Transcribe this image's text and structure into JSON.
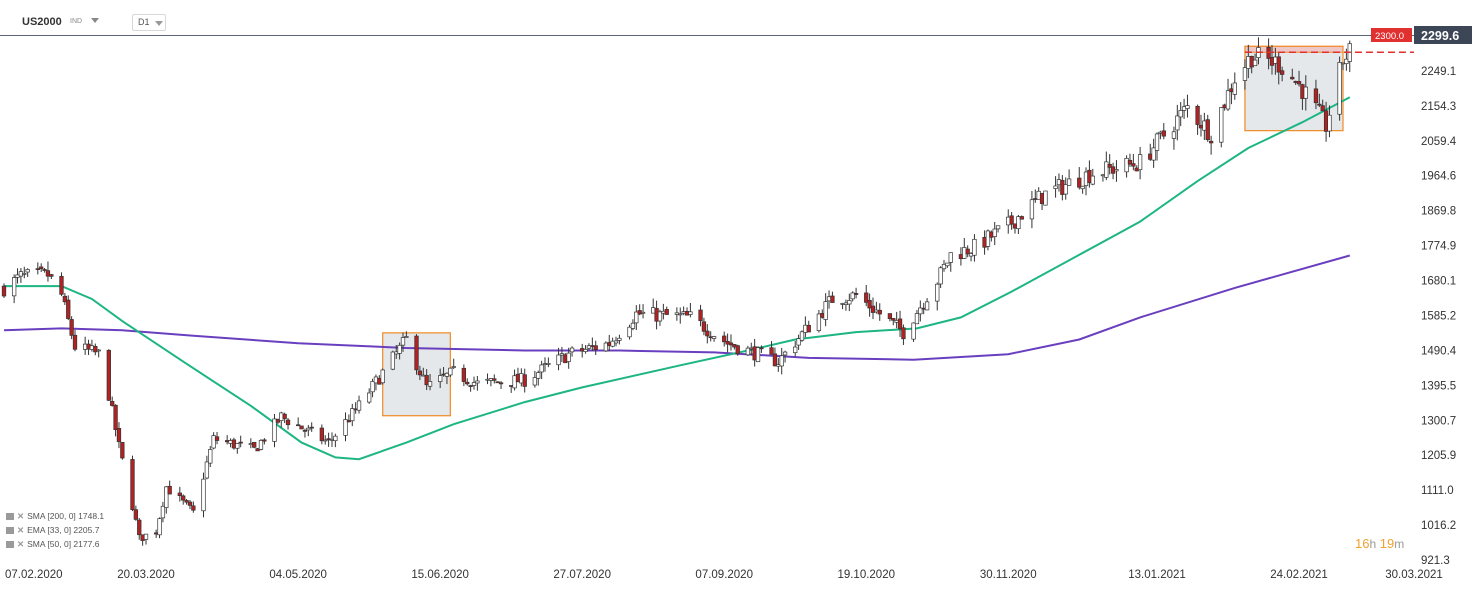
{
  "instrument": {
    "symbol": "US2000",
    "type": "IND",
    "timeframe": "D1"
  },
  "countdown": {
    "hours": "16",
    "h_unit": "h",
    "minutes": "19",
    "m_unit": "m"
  },
  "price_labels": {
    "current": "2299.6",
    "alert": "2300.0"
  },
  "indicators": [
    {
      "label": "SMA [200, 0] 1748.1",
      "color": "#6a3fbf"
    },
    {
      "label": "EMA [33, 0] 2205.7",
      "color": "#ffffff"
    },
    {
      "label": "SMA [50, 0] 2177.6",
      "color": "#1db584"
    }
  ],
  "colors": {
    "bull": "#ffffff",
    "bear": "#b22222",
    "wick": "#333333",
    "sma50": "#1db584",
    "sma200": "#6a3fbf",
    "alert": "#e03030",
    "box": "#f08a24"
  },
  "chart_data": {
    "type": "candlestick",
    "y_ticks": [
      "2249.1",
      "2154.3",
      "2059.4",
      "1964.6",
      "1869.8",
      "1774.9",
      "1680.1",
      "1585.2",
      "1490.4",
      "1395.5",
      "1300.7",
      "1205.9",
      "1111.0",
      "1016.2",
      "921.3"
    ],
    "x_ticks": [
      "07.02.2020",
      "20.03.2020",
      "04.05.2020",
      "15.06.2020",
      "27.07.2020",
      "07.09.2020",
      "19.10.2020",
      "30.11.2020",
      "13.01.2021",
      "24.02.2021",
      "30.03.2021"
    ],
    "x_range": [
      "2020-02-07",
      "2021-03-30"
    ],
    "y_range": [
      921.3,
      2344.0
    ],
    "close_anchors": [
      [
        "2020-02-07",
        1660
      ],
      [
        "2020-02-12",
        1690
      ],
      [
        "2020-02-20",
        1695
      ],
      [
        "2020-02-24",
        1640
      ],
      [
        "2020-02-28",
        1500
      ],
      [
        "2020-03-06",
        1480
      ],
      [
        "2020-03-09",
        1370
      ],
      [
        "2020-03-12",
        1230
      ],
      [
        "2020-03-16",
        1070
      ],
      [
        "2020-03-18",
        980
      ],
      [
        "2020-03-23",
        1000
      ],
      [
        "2020-03-26",
        1120
      ],
      [
        "2020-04-03",
        1050
      ],
      [
        "2020-04-09",
        1250
      ],
      [
        "2020-04-21",
        1220
      ],
      [
        "2020-04-29",
        1310
      ],
      [
        "2020-05-13",
        1240
      ],
      [
        "2020-05-22",
        1340
      ],
      [
        "2020-06-05",
        1520
      ],
      [
        "2020-06-11",
        1390
      ],
      [
        "2020-06-19",
        1430
      ],
      [
        "2020-06-26",
        1400
      ],
      [
        "2020-07-10",
        1410
      ],
      [
        "2020-07-23",
        1480
      ],
      [
        "2020-08-04",
        1510
      ],
      [
        "2020-08-12",
        1590
      ],
      [
        "2020-08-28",
        1580
      ],
      [
        "2020-09-08",
        1510
      ],
      [
        "2020-09-23",
        1460
      ],
      [
        "2020-10-09",
        1630
      ],
      [
        "2020-10-16",
        1640
      ],
      [
        "2020-10-30",
        1540
      ],
      [
        "2020-11-09",
        1680
      ],
      [
        "2020-11-13",
        1750
      ],
      [
        "2020-11-20",
        1770
      ],
      [
        "2020-11-30",
        1830
      ],
      [
        "2020-12-10",
        1910
      ],
      [
        "2020-12-24",
        1970
      ],
      [
        "2021-01-08",
        2000
      ],
      [
        "2021-01-22",
        2150
      ],
      [
        "2021-01-29",
        2080
      ],
      [
        "2021-02-05",
        2230
      ],
      [
        "2021-02-10",
        2290
      ],
      [
        "2021-02-18",
        2270
      ],
      [
        "2021-02-25",
        2200
      ],
      [
        "2021-03-04",
        2100
      ],
      [
        "2021-03-09",
        2280
      ],
      [
        "2021-03-11",
        2299.6
      ]
    ],
    "sma50": [
      [
        "2020-02-07",
        1665
      ],
      [
        "2020-02-24",
        1665
      ],
      [
        "2020-03-04",
        1630
      ],
      [
        "2020-03-13",
        1570
      ],
      [
        "2020-03-31",
        1460
      ],
      [
        "2020-04-20",
        1340
      ],
      [
        "2020-05-05",
        1240
      ],
      [
        "2020-05-15",
        1200
      ],
      [
        "2020-05-22",
        1195
      ],
      [
        "2020-06-05",
        1240
      ],
      [
        "2020-06-19",
        1290
      ],
      [
        "2020-07-10",
        1350
      ],
      [
        "2020-07-27",
        1390
      ],
      [
        "2020-08-25",
        1450
      ],
      [
        "2020-09-14",
        1490
      ],
      [
        "2020-09-28",
        1520
      ],
      [
        "2020-10-16",
        1540
      ],
      [
        "2020-11-03",
        1550
      ],
      [
        "2020-11-16",
        1580
      ],
      [
        "2020-12-01",
        1650
      ],
      [
        "2020-12-21",
        1750
      ],
      [
        "2021-01-08",
        1840
      ],
      [
        "2021-01-25",
        1950
      ],
      [
        "2021-02-09",
        2040
      ],
      [
        "2021-02-25",
        2110
      ],
      [
        "2021-03-11",
        2177.6
      ]
    ],
    "sma200": [
      [
        "2020-02-07",
        1545
      ],
      [
        "2020-02-24",
        1550
      ],
      [
        "2020-03-13",
        1545
      ],
      [
        "2020-04-03",
        1530
      ],
      [
        "2020-05-04",
        1510
      ],
      [
        "2020-06-05",
        1497
      ],
      [
        "2020-07-10",
        1490
      ],
      [
        "2020-08-07",
        1490
      ],
      [
        "2020-09-04",
        1485
      ],
      [
        "2020-10-02",
        1470
      ],
      [
        "2020-11-02",
        1465
      ],
      [
        "2020-11-30",
        1480
      ],
      [
        "2020-12-21",
        1520
      ],
      [
        "2021-01-08",
        1580
      ],
      [
        "2021-02-05",
        1660
      ],
      [
        "2021-03-11",
        1748.1
      ]
    ],
    "alert_level": 2300.0,
    "highlight_boxes": [
      {
        "from": "2020-05-29",
        "to": "2020-06-18",
        "low": 1313,
        "high": 1538
      },
      {
        "from": "2021-02-08",
        "to": "2021-03-09",
        "low": 2087,
        "high": 2316
      }
    ],
    "alert_zone": {
      "from": "2021-02-08",
      "to": "2021-03-09",
      "low": 2300.0,
      "high": 2316
    }
  }
}
